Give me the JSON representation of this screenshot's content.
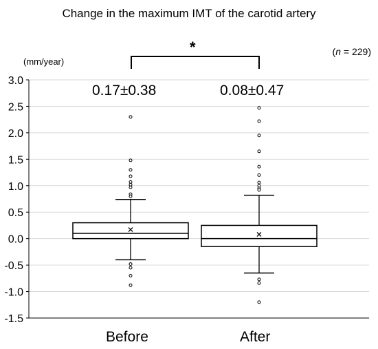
{
  "chart_data": {
    "type": "box",
    "title": "Change in the maximum IMT of the carotid artery",
    "ylabel": "(mm/year)",
    "n_label_prefix": "n",
    "n_label_value": "= 229",
    "significance": "*",
    "ylim": [
      -1.5,
      3.0
    ],
    "yticks": [
      "3.0",
      "2.5",
      "2.0",
      "1.5",
      "1.0",
      "0.5",
      "0.0",
      "-0.5",
      "-1.0",
      "-1.5"
    ],
    "ytick_values": [
      3.0,
      2.5,
      2.0,
      1.5,
      1.0,
      0.5,
      0.0,
      -0.5,
      -1.0,
      -1.5
    ],
    "grid": true,
    "categories": [
      "Before",
      "After"
    ],
    "boxes": [
      {
        "label": "Before",
        "stat_text": "0.17±0.38",
        "whisker_low": -0.4,
        "q1": 0.0,
        "median": 0.1,
        "q3": 0.3,
        "whisker_high": 0.74,
        "mean": 0.17,
        "outliers": [
          2.3,
          1.48,
          1.3,
          1.18,
          1.07,
          1.02,
          0.97,
          0.84,
          0.8,
          -0.48,
          -0.55,
          -0.7,
          -0.88
        ]
      },
      {
        "label": "After",
        "stat_text": "0.08±0.47",
        "whisker_low": -0.65,
        "q1": -0.15,
        "median": 0.0,
        "q3": 0.25,
        "whisker_high": 0.82,
        "mean": 0.08,
        "outliers": [
          2.47,
          2.22,
          1.95,
          1.65,
          1.36,
          1.2,
          1.06,
          1.0,
          0.95,
          0.92,
          -0.77,
          -0.84,
          -1.2
        ]
      }
    ]
  }
}
